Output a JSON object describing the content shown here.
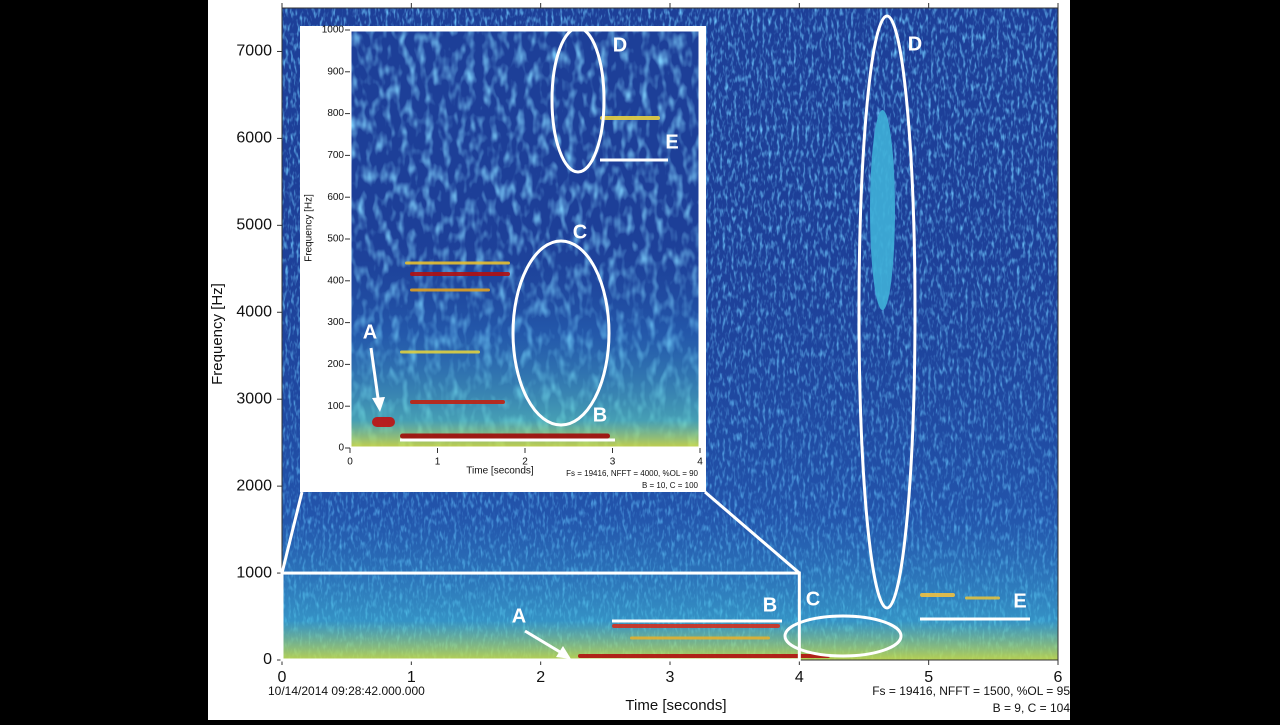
{
  "chart_data": [
    {
      "type": "spectrogram",
      "xlabel": "Time [seconds]",
      "ylabel": "Frequency [Hz]",
      "xlim": [
        0,
        6
      ],
      "ylim": [
        0,
        7500
      ],
      "xticks": [
        0,
        1,
        2,
        3,
        4,
        5,
        6
      ],
      "yticks": [
        0,
        1000,
        2000,
        3000,
        4000,
        5000,
        6000,
        7000
      ],
      "timestamp": "10/14/2014 09:28:42.000.000",
      "notes": [
        "Fs = 19416, NFFT = 1500, %OL = 95",
        "B = 9, C = 104"
      ],
      "annotations": [
        "A",
        "B",
        "C",
        "D",
        "E"
      ]
    },
    {
      "type": "spectrogram",
      "xlabel": "Time [seconds]",
      "ylabel": "Frequency [Hz]",
      "xlim": [
        0,
        4
      ],
      "ylim": [
        0,
        1000
      ],
      "xticks": [
        0,
        1,
        2,
        3,
        4
      ],
      "yticks": [
        0,
        100,
        200,
        300,
        400,
        500,
        600,
        700,
        800,
        900,
        1000
      ],
      "notes": [
        "Fs = 19416, NFFT = 4000, %OL = 90",
        "B = 10, C = 100"
      ],
      "annotations": [
        "A",
        "B",
        "C",
        "D",
        "E"
      ]
    }
  ]
}
